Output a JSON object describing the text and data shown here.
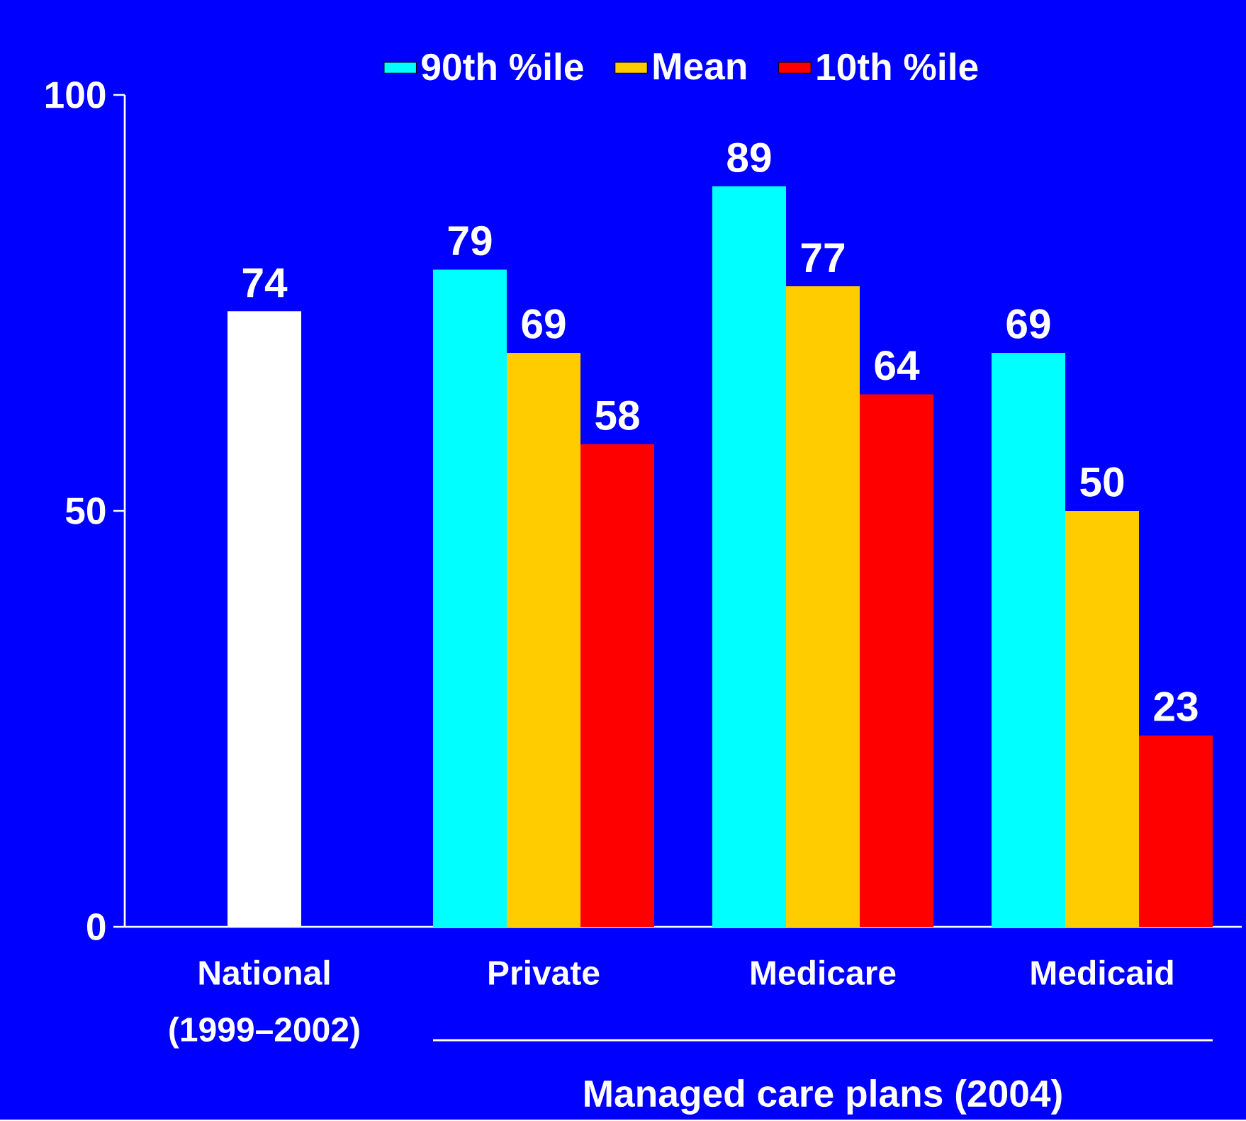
{
  "chart_data": {
    "type": "bar",
    "categories": [
      "National (1999–2002)",
      "Private",
      "Medicare",
      "Medicaid"
    ],
    "series": [
      {
        "color": "#ffffff",
        "values": [
          74,
          null,
          null,
          null
        ]
      },
      {
        "name": "90th %ile",
        "color": "#00ffff",
        "values": [
          null,
          79,
          89,
          69
        ]
      },
      {
        "name": "Mean",
        "color": "#ffcc00",
        "values": [
          null,
          69,
          77,
          50
        ]
      },
      {
        "name": "10th %ile",
        "color": "#ff0000",
        "values": [
          null,
          58,
          64,
          23
        ]
      }
    ],
    "ylim": [
      0,
      100
    ],
    "yticks": [
      0,
      50,
      100
    ],
    "grid": false,
    "legend": "top",
    "data_labels": true,
    "annotations": [
      "Managed care plans (2004)"
    ]
  }
}
